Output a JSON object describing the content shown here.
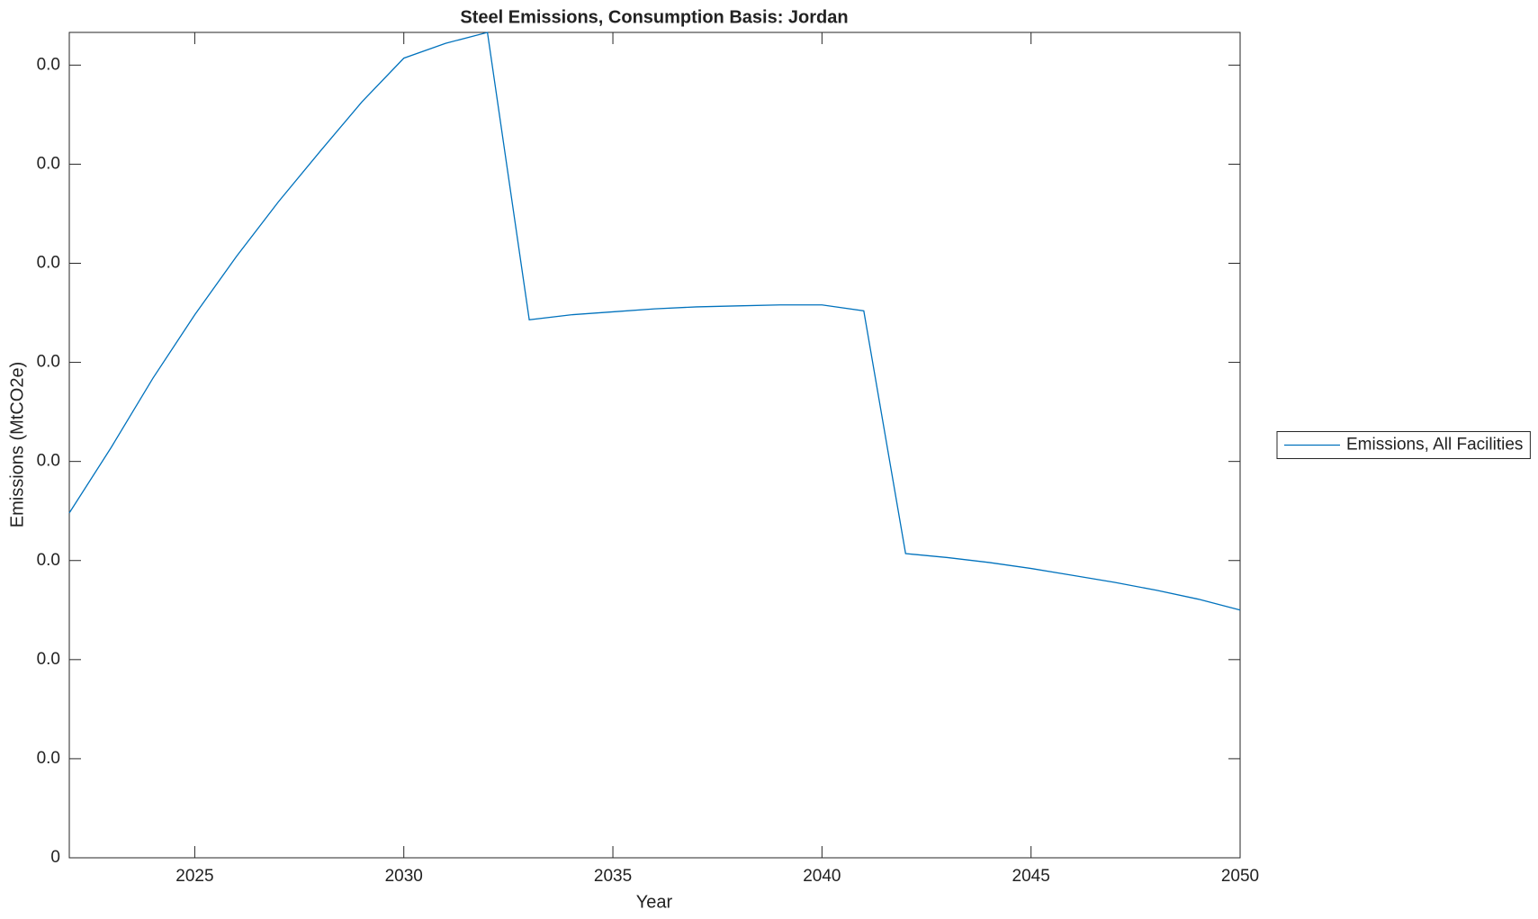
{
  "chart_data": {
    "type": "line",
    "title": "Steel Emissions, Consumption Basis: Jordan",
    "xlabel": "Year",
    "ylabel": "Emissions (MtCO2e)",
    "x": [
      2022,
      2023,
      2024,
      2025,
      2026,
      2027,
      2028,
      2029,
      2030,
      2031,
      2032,
      2033,
      2034,
      2035,
      2036,
      2037,
      2038,
      2039,
      2040,
      2041,
      2042,
      2043,
      2044,
      2045,
      2046,
      2047,
      2048,
      2049,
      2050
    ],
    "series": [
      {
        "name": "Emissions, All Facilities",
        "color": "#0072bd",
        "values": [
          0.00348,
          0.00414,
          0.00484,
          0.00548,
          0.00607,
          0.00662,
          0.00713,
          0.00763,
          0.00807,
          0.00822,
          0.00833,
          0.00543,
          0.00548,
          0.00551,
          0.00554,
          0.00556,
          0.00557,
          0.00558,
          0.00558,
          0.00552,
          0.00307,
          0.00303,
          0.00298,
          0.00292,
          0.00285,
          0.00278,
          0.0027,
          0.00261,
          0.0025
        ]
      }
    ],
    "xlim": [
      2022,
      2050
    ],
    "xticks": [
      2025,
      2030,
      2035,
      2040,
      2045,
      2050
    ],
    "ylim": [
      0,
      0.00833
    ],
    "yticks": [
      0,
      {
        "value": 0.001,
        "label": "0.0"
      },
      {
        "value": 0.002,
        "label": "0.0"
      },
      {
        "value": 0.003,
        "label": "0.0"
      },
      {
        "value": 0.004,
        "label": "0.0"
      },
      {
        "value": 0.005,
        "label": "0.0"
      },
      {
        "value": 0.006,
        "label": "0.0"
      },
      {
        "value": 0.007,
        "label": "0.0"
      },
      {
        "value": 0.008,
        "label": "0.0"
      }
    ],
    "grid": false,
    "legend": "east-outside"
  }
}
